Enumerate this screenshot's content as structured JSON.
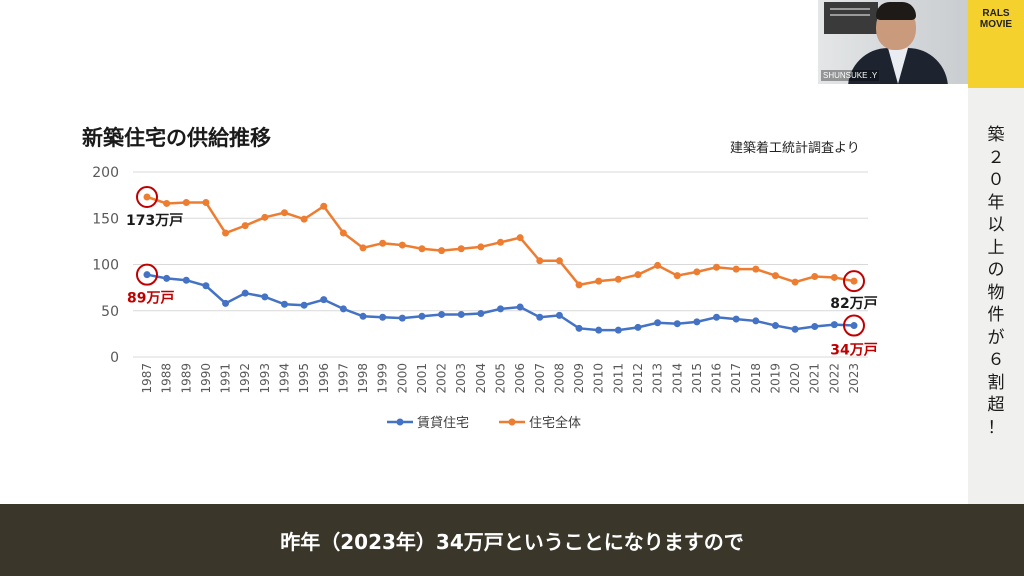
{
  "title": "新築住宅の供給推移",
  "source_note": "建築着工統計調査より",
  "sidebar_chars": [
    "築",
    "２",
    "０",
    "年",
    "以",
    "上",
    "の",
    "物",
    "件",
    "が",
    "６",
    "割",
    "超",
    "！"
  ],
  "logo": {
    "line1": "RALS",
    "line2": "MOVIE"
  },
  "video": {
    "speaker_label": "SHUNSUKE .Y"
  },
  "caption": "昨年（2023年）34万戸ということになりますので",
  "colors": {
    "blue": "#4472c4",
    "orange": "#ed7d31",
    "highlight_red": "#c00000",
    "caption_bg": "#3a3629",
    "accent_yellow": "#f5d12e"
  },
  "chart_data": {
    "type": "line",
    "categories": [
      "1987",
      "1988",
      "1989",
      "1990",
      "1991",
      "1992",
      "1993",
      "1994",
      "1995",
      "1996",
      "1997",
      "1998",
      "1999",
      "2000",
      "2001",
      "2002",
      "2003",
      "2004",
      "2005",
      "2006",
      "2007",
      "2008",
      "2009",
      "2010",
      "2011",
      "2012",
      "2013",
      "2014",
      "2015",
      "2016",
      "2017",
      "2018",
      "2019",
      "2020",
      "2021",
      "2022",
      "2023"
    ],
    "ylim": [
      0,
      200
    ],
    "yticks": [
      "0",
      "50",
      "100",
      "150",
      "200"
    ],
    "grid": true,
    "legend_position": "bottom",
    "series": [
      {
        "name": "賃貸住宅",
        "color": "#4472c4",
        "values": [
          89,
          85,
          83,
          77,
          58,
          69,
          65,
          57,
          56,
          62,
          52,
          44,
          43,
          42,
          44,
          46,
          46,
          47,
          52,
          54,
          43,
          45,
          31,
          29,
          29,
          32,
          37,
          36,
          38,
          43,
          41,
          39,
          34,
          30,
          33,
          35,
          34
        ]
      },
      {
        "name": "住宅全体",
        "color": "#ed7d31",
        "values": [
          173,
          166,
          167,
          167,
          134,
          142,
          151,
          156,
          149,
          163,
          134,
          118,
          123,
          121,
          117,
          115,
          117,
          119,
          124,
          129,
          104,
          104,
          78,
          82,
          84,
          89,
          99,
          88,
          92,
          97,
          95,
          95,
          88,
          81,
          87,
          86,
          82
        ]
      }
    ],
    "annotations": [
      {
        "text": "173万戸",
        "color": "#1a1a1a",
        "series": 1,
        "index": 0
      },
      {
        "text": "89万戸",
        "color": "#c00000",
        "series": 0,
        "index": 0
      },
      {
        "text": "82万戸",
        "color": "#1a1a1a",
        "series": 1,
        "index": 36
      },
      {
        "text": "34万戸",
        "color": "#c00000",
        "series": 0,
        "index": 36
      }
    ]
  }
}
